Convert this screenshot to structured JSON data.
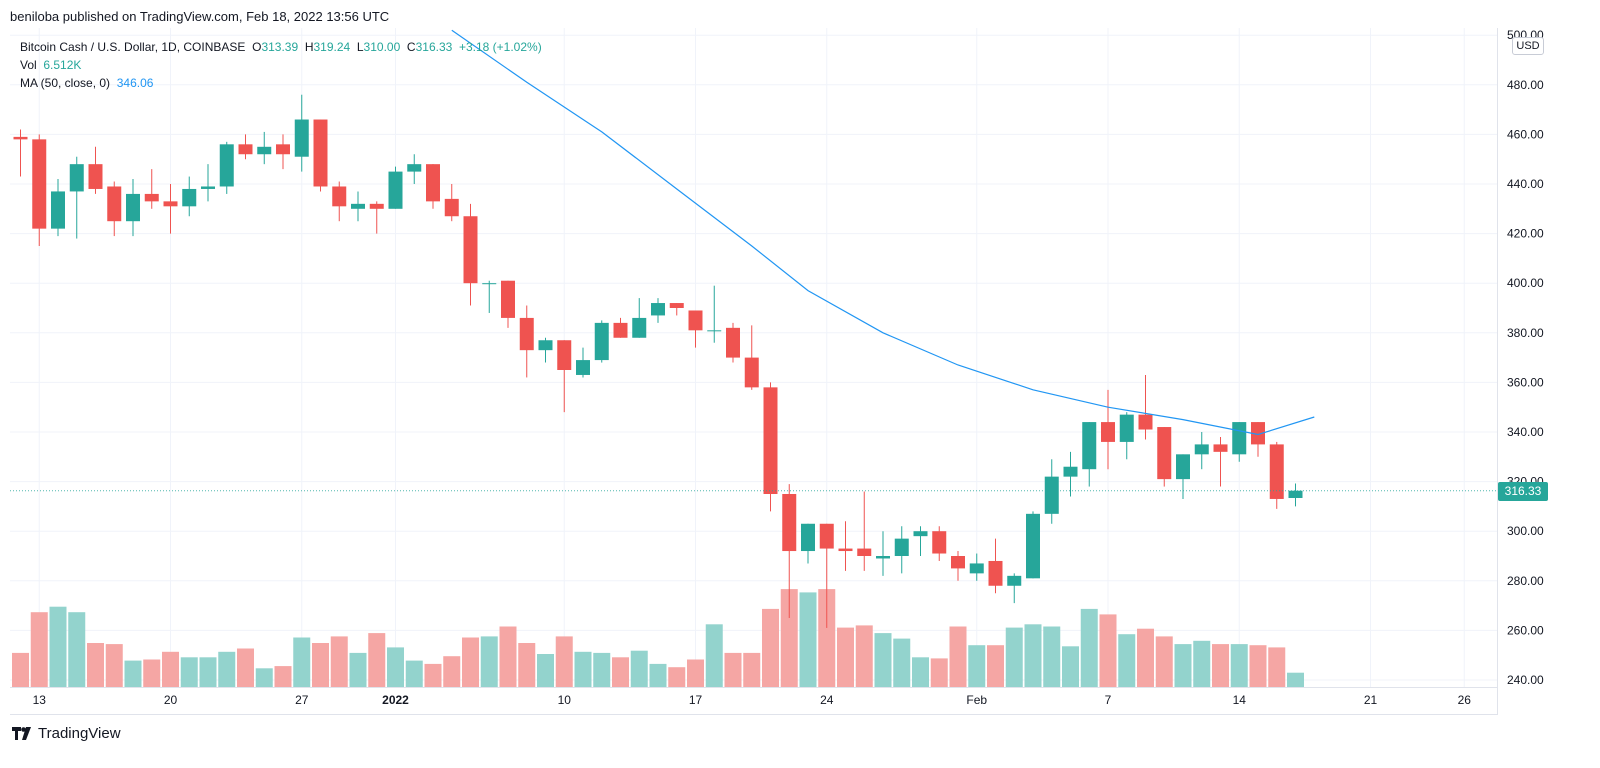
{
  "header": {
    "published": "beniloba published on TradingView.com, Feb 18, 2022 13:56 UTC"
  },
  "legend": {
    "symbol": "Bitcoin Cash / U.S. Dollar, 1D, COINBASE",
    "o_label": "O",
    "o_value": "313.39",
    "h_label": "H",
    "h_value": "319.24",
    "l_label": "L",
    "l_value": "310.00",
    "c_label": "C",
    "c_value": "316.33",
    "change": "+3.18 (+1.02%)",
    "vol_label": "Vol",
    "vol_value": "6.512K",
    "ma_label": "MA (50, close, 0)",
    "ma_value": "346.06"
  },
  "price_axis": {
    "currency": "USD",
    "last_price": "316.33"
  },
  "footer": {
    "brand": "TradingView"
  },
  "colors": {
    "up": "#26a69a",
    "down": "#ef5350",
    "up_volume": "#93d3cd",
    "down_volume": "#f5a6a4",
    "ma": "#2196f3",
    "grid": "#f0f3fa"
  },
  "chart_data": {
    "type": "candlestick",
    "title": "Bitcoin Cash / U.S. Dollar, 1D, COINBASE",
    "ylim": [
      235,
      500
    ],
    "y_ticks": [
      240,
      260,
      280,
      300,
      320,
      340,
      360,
      380,
      400,
      420,
      440,
      460,
      480,
      500
    ],
    "y_tick_labels": [
      "240.00",
      "260.00",
      "280.00",
      "300.00",
      "320.00",
      "340.00",
      "360.00",
      "380.00",
      "400.00",
      "420.00",
      "440.00",
      "460.00",
      "480.00",
      "500.00"
    ],
    "x_tick_labels": [
      {
        "label": "13",
        "index": 1
      },
      {
        "label": "20",
        "index": 8
      },
      {
        "label": "27",
        "index": 15
      },
      {
        "label": "2022",
        "index": 20
      },
      {
        "label": "10",
        "index": 29
      },
      {
        "label": "17",
        "index": 36
      },
      {
        "label": "24",
        "index": 43
      },
      {
        "label": "Feb",
        "index": 51
      },
      {
        "label": "7",
        "index": 58
      },
      {
        "label": "14",
        "index": 65
      },
      {
        "label": "21",
        "index": 72
      },
      {
        "label": "26",
        "index": 77
      }
    ],
    "grid": true,
    "candles": [
      {
        "o": 459,
        "h": 462,
        "l": 443,
        "c": 458
      },
      {
        "o": 458,
        "h": 460,
        "l": 415,
        "c": 422
      },
      {
        "o": 422,
        "h": 442,
        "l": 419,
        "c": 437
      },
      {
        "o": 437,
        "h": 451,
        "l": 418,
        "c": 448
      },
      {
        "o": 448,
        "h": 455,
        "l": 436,
        "c": 438
      },
      {
        "o": 439,
        "h": 441,
        "l": 419,
        "c": 425
      },
      {
        "o": 425,
        "h": 442,
        "l": 419,
        "c": 436
      },
      {
        "o": 436,
        "h": 446,
        "l": 430,
        "c": 433
      },
      {
        "o": 433,
        "h": 440,
        "l": 420,
        "c": 431
      },
      {
        "o": 431,
        "h": 443,
        "l": 427,
        "c": 438
      },
      {
        "o": 438,
        "h": 448,
        "l": 433,
        "c": 439
      },
      {
        "o": 439,
        "h": 457,
        "l": 436,
        "c": 456
      },
      {
        "o": 456,
        "h": 460,
        "l": 450,
        "c": 452
      },
      {
        "o": 452,
        "h": 461,
        "l": 448,
        "c": 455
      },
      {
        "o": 456,
        "h": 460,
        "l": 446,
        "c": 452
      },
      {
        "o": 451,
        "h": 476,
        "l": 445,
        "c": 466
      },
      {
        "o": 466,
        "h": 466,
        "l": 437,
        "c": 439
      },
      {
        "o": 439,
        "h": 441,
        "l": 425,
        "c": 431
      },
      {
        "o": 430,
        "h": 437,
        "l": 425,
        "c": 432
      },
      {
        "o": 432,
        "h": 433,
        "l": 420,
        "c": 430
      },
      {
        "o": 430,
        "h": 447,
        "l": 430,
        "c": 445
      },
      {
        "o": 445,
        "h": 452,
        "l": 440,
        "c": 448
      },
      {
        "o": 448,
        "h": 448,
        "l": 430,
        "c": 433
      },
      {
        "o": 434,
        "h": 440,
        "l": 425,
        "c": 427
      },
      {
        "o": 427,
        "h": 432,
        "l": 391,
        "c": 400
      },
      {
        "o": 400,
        "h": 401,
        "l": 388,
        "c": 400
      },
      {
        "o": 401,
        "h": 401,
        "l": 382,
        "c": 386
      },
      {
        "o": 386,
        "h": 391,
        "l": 362,
        "c": 373
      },
      {
        "o": 373,
        "h": 378,
        "l": 368,
        "c": 377
      },
      {
        "o": 377,
        "h": 377,
        "l": 348,
        "c": 365
      },
      {
        "o": 363,
        "h": 374,
        "l": 362,
        "c": 369
      },
      {
        "o": 369,
        "h": 385,
        "l": 368,
        "c": 384
      },
      {
        "o": 384,
        "h": 386,
        "l": 378,
        "c": 378
      },
      {
        "o": 378,
        "h": 394,
        "l": 378,
        "c": 386
      },
      {
        "o": 387,
        "h": 394,
        "l": 384,
        "c": 392
      },
      {
        "o": 392,
        "h": 392,
        "l": 387,
        "c": 390
      },
      {
        "o": 389,
        "h": 389,
        "l": 374,
        "c": 381
      },
      {
        "o": 381,
        "h": 399,
        "l": 376,
        "c": 381
      },
      {
        "o": 382,
        "h": 384,
        "l": 368,
        "c": 370
      },
      {
        "o": 370,
        "h": 383,
        "l": 357,
        "c": 358
      },
      {
        "o": 358,
        "h": 360,
        "l": 308,
        "c": 315
      },
      {
        "o": 315,
        "h": 319,
        "l": 265,
        "c": 292
      },
      {
        "o": 292,
        "h": 303,
        "l": 287,
        "c": 303
      },
      {
        "o": 303,
        "h": 303,
        "l": 261,
        "c": 293
      },
      {
        "o": 293,
        "h": 304,
        "l": 284,
        "c": 292
      },
      {
        "o": 293,
        "h": 316,
        "l": 284,
        "c": 290
      },
      {
        "o": 289,
        "h": 300,
        "l": 282,
        "c": 290
      },
      {
        "o": 290,
        "h": 302,
        "l": 283,
        "c": 297
      },
      {
        "o": 298,
        "h": 302,
        "l": 290,
        "c": 300
      },
      {
        "o": 300,
        "h": 302,
        "l": 288,
        "c": 291
      },
      {
        "o": 290,
        "h": 292,
        "l": 280,
        "c": 285
      },
      {
        "o": 283,
        "h": 291,
        "l": 280,
        "c": 287
      },
      {
        "o": 288,
        "h": 297,
        "l": 275,
        "c": 278
      },
      {
        "o": 278,
        "h": 283,
        "l": 271,
        "c": 282
      },
      {
        "o": 281,
        "h": 308,
        "l": 281,
        "c": 307
      },
      {
        "o": 307,
        "h": 329,
        "l": 303,
        "c": 322
      },
      {
        "o": 322,
        "h": 332,
        "l": 314,
        "c": 326
      },
      {
        "o": 325,
        "h": 344,
        "l": 318,
        "c": 344
      },
      {
        "o": 344,
        "h": 357,
        "l": 325,
        "c": 336
      },
      {
        "o": 336,
        "h": 348,
        "l": 329,
        "c": 347
      },
      {
        "o": 347,
        "h": 363,
        "l": 337,
        "c": 341
      },
      {
        "o": 342,
        "h": 342,
        "l": 318,
        "c": 321
      },
      {
        "o": 321,
        "h": 331,
        "l": 313,
        "c": 331
      },
      {
        "o": 331,
        "h": 340,
        "l": 325,
        "c": 335
      },
      {
        "o": 335,
        "h": 338,
        "l": 318,
        "c": 332
      },
      {
        "o": 331,
        "h": 344,
        "l": 328,
        "c": 344
      },
      {
        "o": 344,
        "h": 344,
        "l": 330,
        "c": 335
      },
      {
        "o": 335,
        "h": 336,
        "l": 309,
        "c": 313
      },
      {
        "o": 313.39,
        "h": 319.24,
        "l": 310,
        "c": 316.33
      }
    ],
    "volume_relative": [
      0.31,
      0.68,
      0.73,
      0.68,
      0.4,
      0.39,
      0.24,
      0.25,
      0.32,
      0.27,
      0.27,
      0.32,
      0.35,
      0.17,
      0.19,
      0.45,
      0.4,
      0.46,
      0.31,
      0.49,
      0.36,
      0.24,
      0.21,
      0.28,
      0.45,
      0.46,
      0.55,
      0.4,
      0.3,
      0.46,
      0.32,
      0.31,
      0.27,
      0.33,
      0.21,
      0.18,
      0.25,
      0.57,
      0.31,
      0.31,
      0.71,
      0.89,
      0.86,
      0.89,
      0.54,
      0.56,
      0.49,
      0.44,
      0.27,
      0.26,
      0.55,
      0.38,
      0.38,
      0.54,
      0.57,
      0.55,
      0.37,
      0.71,
      0.66,
      0.48,
      0.53,
      0.46,
      0.39,
      0.42,
      0.39,
      0.39,
      0.38,
      0.36,
      0.13
    ],
    "ma50": [
      {
        "index": 23,
        "value": 502
      },
      {
        "index": 27,
        "value": 481
      },
      {
        "index": 31,
        "value": 461
      },
      {
        "index": 35,
        "value": 438
      },
      {
        "index": 39,
        "value": 415
      },
      {
        "index": 42,
        "value": 397
      },
      {
        "index": 46,
        "value": 380
      },
      {
        "index": 50,
        "value": 367
      },
      {
        "index": 54,
        "value": 357
      },
      {
        "index": 58,
        "value": 350
      },
      {
        "index": 62,
        "value": 345
      },
      {
        "index": 66,
        "value": 339
      },
      {
        "index": 69,
        "value": 346.06
      }
    ]
  }
}
